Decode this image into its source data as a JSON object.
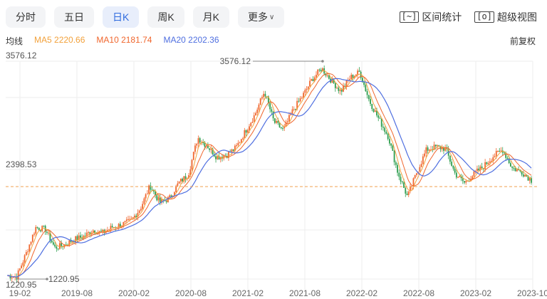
{
  "tabs": [
    {
      "label": "分时",
      "active": false
    },
    {
      "label": "五日",
      "active": false
    },
    {
      "label": "日K",
      "active": true
    },
    {
      "label": "周K",
      "active": false
    },
    {
      "label": "月K",
      "active": false
    },
    {
      "label": "更多",
      "active": false
    }
  ],
  "tools": {
    "range_stats": {
      "icon": "[~]",
      "label": "区间统计"
    },
    "super_view": {
      "icon": "[o]",
      "label": "超级视图"
    }
  },
  "ma": {
    "label": "均线",
    "ma5": "MA5 2220.66",
    "ma10": "MA10 2181.74",
    "ma20": "MA20 2202.36",
    "colors": {
      "ma5": "#f2a13b",
      "ma10": "#f0662d",
      "ma20": "#4f6fe0"
    }
  },
  "adjust": "前复权",
  "chart_data": {
    "type": "line",
    "y_axis_labels": [
      "3576.12",
      "2398.53"
    ],
    "max_label": "3576.12",
    "min_label": "1220.95",
    "min_axis_label": "1220.95",
    "ylim": [
      1220.95,
      3576.12
    ],
    "last_price": 2220.66,
    "x_tick_labels": [
      "19-02",
      "2019-08",
      "2020-02",
      "2020-08",
      "2021-02",
      "2021-08",
      "2022-02",
      "2022-08",
      "2023-02",
      "2023-10"
    ],
    "colors": {
      "up": "#f0662d",
      "down": "#2e9e4f",
      "grid": "#eeeeee",
      "ref": "#f0a050"
    },
    "series": {
      "x": [
        0,
        3,
        6,
        9,
        12,
        15,
        18,
        21,
        24,
        27,
        30,
        33,
        36,
        39,
        42,
        45,
        48,
        51,
        54,
        57,
        60,
        63,
        66,
        69,
        72,
        75,
        78,
        81,
        84,
        87,
        90,
        93,
        96,
        99,
        102,
        105,
        108,
        111,
        114,
        117,
        120,
        123,
        126,
        129,
        132,
        135,
        138,
        141,
        144,
        147,
        150,
        153,
        156,
        159,
        162,
        165
      ],
      "y": [
        1260,
        1245,
        1500,
        1780,
        1760,
        1560,
        1590,
        1650,
        1680,
        1750,
        1720,
        1780,
        1810,
        1850,
        1990,
        2230,
        2050,
        2090,
        2260,
        2350,
        2750,
        2660,
        2540,
        2560,
        2640,
        2820,
        3000,
        3250,
        2920,
        2830,
        3050,
        3200,
        3380,
        3500,
        3370,
        3250,
        3400,
        3460,
        3150,
        2950,
        2760,
        2370,
        2110,
        2380,
        2620,
        2650,
        2630,
        2360,
        2260,
        2360,
        2440,
        2550,
        2620,
        2420,
        2380,
        2290
      ]
    }
  }
}
